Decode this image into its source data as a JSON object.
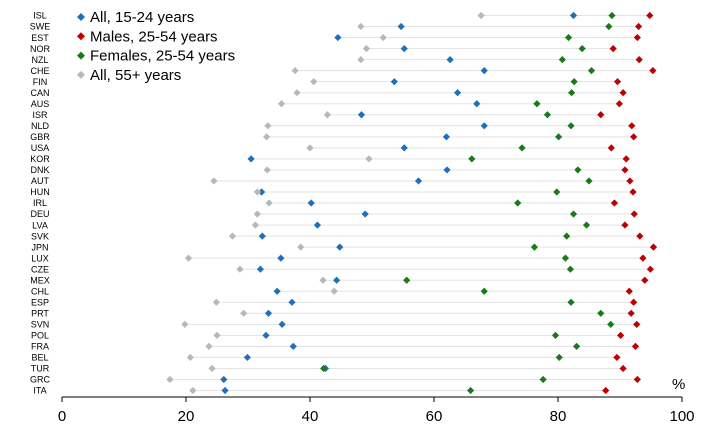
{
  "chart_data": {
    "type": "scatter",
    "orientation": "horizontal-dot",
    "x_unit_label": "%",
    "xlim": [
      0,
      100
    ],
    "x_ticks": [
      0,
      20,
      40,
      60,
      80,
      100
    ],
    "grid": false,
    "legend_placement": "top-left",
    "categories": [
      "ISL",
      "SWE",
      "EST",
      "NOR",
      "NZL",
      "CHE",
      "FIN",
      "CAN",
      "AUS",
      "ISR",
      "NLD",
      "GBR",
      "USA",
      "KOR",
      "DNK",
      "AUT",
      "HUN",
      "IRL",
      "DEU",
      "LVA",
      "SVK",
      "JPN",
      "LUX",
      "CZE",
      "MEX",
      "CHL",
      "ESP",
      "PRT",
      "SVN",
      "POL",
      "FRA",
      "BEL",
      "TUR",
      "GRC",
      "ITA"
    ],
    "series": [
      {
        "name": "All, 15-24 years",
        "color": "#1f6fbf",
        "values": [
          82.5,
          54.7,
          44.5,
          55.2,
          62.6,
          68.1,
          53.6,
          63.8,
          66.9,
          48.3,
          68.1,
          62.0,
          55.2,
          30.5,
          62.1,
          57.5,
          32.2,
          40.2,
          48.9,
          41.2,
          32.3,
          44.8,
          35.3,
          32.0,
          44.3,
          34.7,
          37.1,
          33.3,
          35.5,
          32.9,
          37.3,
          29.9,
          42.5,
          26.1,
          26.3
        ]
      },
      {
        "name": "Males, 25-54 years",
        "color": "#c00000",
        "values": [
          94.8,
          93.0,
          92.8,
          88.9,
          93.1,
          95.3,
          89.6,
          90.5,
          89.9,
          86.9,
          91.9,
          92.2,
          88.6,
          91.0,
          90.8,
          91.6,
          92.1,
          89.1,
          92.3,
          90.8,
          93.2,
          95.4,
          93.7,
          94.9,
          94.0,
          91.5,
          92.2,
          91.8,
          92.7,
          90.1,
          92.5,
          89.5,
          90.5,
          92.8,
          87.7
        ]
      },
      {
        "name": "Females, 25-54 years",
        "color": "#1a7a1a",
        "values": [
          88.7,
          88.2,
          81.7,
          83.9,
          80.7,
          85.4,
          82.6,
          82.2,
          76.6,
          78.3,
          82.1,
          80.1,
          74.2,
          66.1,
          83.2,
          85.0,
          79.8,
          73.5,
          82.5,
          84.6,
          81.4,
          76.2,
          81.2,
          82.0,
          55.6,
          68.1,
          82.1,
          86.9,
          88.5,
          79.6,
          83.0,
          80.2,
          42.2,
          77.6,
          65.9
        ]
      },
      {
        "name": "All, 55+ years",
        "color": "#b8b8b8",
        "values": [
          67.6,
          48.2,
          51.8,
          49.1,
          48.2,
          37.6,
          40.6,
          37.9,
          35.4,
          42.8,
          33.2,
          33.0,
          40.0,
          49.5,
          33.1,
          24.5,
          31.5,
          33.4,
          31.5,
          31.2,
          27.5,
          38.5,
          20.4,
          28.7,
          42.1,
          43.9,
          24.9,
          29.3,
          19.8,
          25.0,
          23.7,
          20.7,
          24.2,
          17.4,
          21.1
        ]
      }
    ]
  }
}
